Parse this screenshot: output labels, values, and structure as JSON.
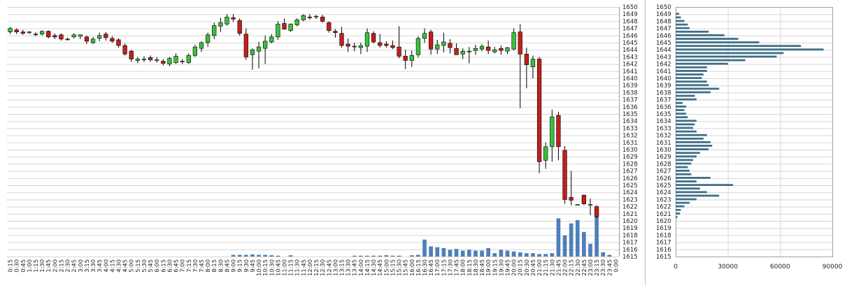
{
  "colors": {
    "bull": "#3cc03c",
    "bear": "#c41e1e",
    "wick": "#000000",
    "volume": "#4f7fb8",
    "profile": "#3f6f86",
    "grid": "#d6d6d6",
    "separator": "#bfbfbf"
  },
  "chart_data": [
    {
      "type": "candlestick",
      "x_tick_labels": [
        "0:15",
        "0:30",
        "0:45",
        "1:00",
        "1:15",
        "1:30",
        "1:45",
        "2:00",
        "2:15",
        "2:30",
        "2:45",
        "3:00",
        "3:15",
        "3:30",
        "3:45",
        "4:00",
        "4:15",
        "4:30",
        "4:45",
        "5:00",
        "5:15",
        "5:30",
        "5:45",
        "6:00",
        "6:15",
        "6:30",
        "6:45",
        "7:00",
        "7:15",
        "7:30",
        "7:45",
        "8:00",
        "8:15",
        "8:30",
        "8:45",
        "9:00",
        "9:15",
        "9:30",
        "9:45",
        "10:00",
        "10:15",
        "10:30",
        "10:45",
        "11:00",
        "11:15",
        "11:30",
        "11:45",
        "12:00",
        "12:15",
        "12:30",
        "12:45",
        "13:00",
        "13:15",
        "13:30",
        "13:45",
        "14:00",
        "14:15",
        "14:30",
        "14:45",
        "15:00",
        "15:15",
        "15:30",
        "15:45",
        "16:00",
        "16:15",
        "16:30",
        "16:45",
        "17:00",
        "17:15",
        "17:30",
        "17:45",
        "18:00",
        "18:15",
        "18:30",
        "18:45",
        "19:00",
        "19:15",
        "19:30",
        "19:45",
        "20:00",
        "20:15",
        "20:30",
        "20:45",
        "21:00",
        "21:15",
        "21:30",
        "21:45",
        "22:00",
        "22:15",
        "22:30",
        "22:45",
        "23:00",
        "23:15",
        "23:30",
        "23:45",
        "0:00"
      ],
      "y_tick_labels": [
        "1615",
        "1616",
        "1617",
        "1618",
        "1619",
        "1620",
        "1621",
        "1622",
        "1623",
        "1624",
        "1625",
        "1626",
        "1627",
        "1628",
        "1629",
        "1630",
        "1631",
        "1632",
        "1633",
        "1634",
        "1635",
        "1636",
        "1637",
        "1638",
        "1639",
        "1640",
        "1641",
        "1642",
        "1643",
        "1644",
        "1645",
        "1646",
        "1647",
        "1648",
        "1649",
        "1650"
      ],
      "ylim": [
        1615,
        1650
      ],
      "candles": [
        {
          "o": 1646.5,
          "h": 1647.2,
          "l": 1646.2,
          "c": 1647.0
        },
        {
          "o": 1646.8,
          "h": 1647.0,
          "l": 1646.2,
          "c": 1646.5
        },
        {
          "o": 1646.5,
          "h": 1646.8,
          "l": 1646.1,
          "c": 1646.3
        },
        {
          "o": 1646.4,
          "h": 1646.6,
          "l": 1646.2,
          "c": 1646.5
        },
        {
          "o": 1646.2,
          "h": 1646.5,
          "l": 1645.9,
          "c": 1646.1
        },
        {
          "o": 1646.2,
          "h": 1646.7,
          "l": 1646.0,
          "c": 1646.6
        },
        {
          "o": 1646.6,
          "h": 1646.7,
          "l": 1645.6,
          "c": 1645.8
        },
        {
          "o": 1646.0,
          "h": 1646.3,
          "l": 1645.5,
          "c": 1645.8
        },
        {
          "o": 1646.1,
          "h": 1646.3,
          "l": 1645.3,
          "c": 1645.5
        },
        {
          "o": 1645.5,
          "h": 1645.7,
          "l": 1645.3,
          "c": 1645.4
        },
        {
          "o": 1645.8,
          "h": 1646.3,
          "l": 1645.6,
          "c": 1646.1
        },
        {
          "o": 1645.9,
          "h": 1646.1,
          "l": 1645.5,
          "c": 1646.1
        },
        {
          "o": 1645.8,
          "h": 1646.0,
          "l": 1644.8,
          "c": 1645.2
        },
        {
          "o": 1645.0,
          "h": 1645.8,
          "l": 1644.8,
          "c": 1645.5
        },
        {
          "o": 1645.6,
          "h": 1646.4,
          "l": 1645.2,
          "c": 1646.0
        },
        {
          "o": 1646.2,
          "h": 1646.5,
          "l": 1645.3,
          "c": 1645.7
        },
        {
          "o": 1645.6,
          "h": 1645.9,
          "l": 1645.0,
          "c": 1645.2
        },
        {
          "o": 1645.4,
          "h": 1645.6,
          "l": 1644.3,
          "c": 1644.6
        },
        {
          "o": 1644.6,
          "h": 1644.9,
          "l": 1643.2,
          "c": 1643.4
        },
        {
          "o": 1643.8,
          "h": 1644.0,
          "l": 1642.3,
          "c": 1642.7
        },
        {
          "o": 1642.5,
          "h": 1643.0,
          "l": 1642.1,
          "c": 1642.7
        },
        {
          "o": 1642.6,
          "h": 1643.1,
          "l": 1642.3,
          "c": 1642.7
        },
        {
          "o": 1642.9,
          "h": 1643.2,
          "l": 1642.3,
          "c": 1642.6
        },
        {
          "o": 1642.5,
          "h": 1643.0,
          "l": 1642.2,
          "c": 1642.6
        },
        {
          "o": 1642.4,
          "h": 1642.7,
          "l": 1641.8,
          "c": 1642.1
        },
        {
          "o": 1642.0,
          "h": 1643.0,
          "l": 1641.7,
          "c": 1642.8
        },
        {
          "o": 1642.2,
          "h": 1643.5,
          "l": 1642.0,
          "c": 1643.1
        },
        {
          "o": 1642.3,
          "h": 1642.7,
          "l": 1642.0,
          "c": 1642.4
        },
        {
          "o": 1642.2,
          "h": 1643.5,
          "l": 1642.0,
          "c": 1643.2
        },
        {
          "o": 1643.2,
          "h": 1644.7,
          "l": 1643.0,
          "c": 1644.4
        },
        {
          "o": 1644.2,
          "h": 1645.2,
          "l": 1643.7,
          "c": 1645.0
        },
        {
          "o": 1645.0,
          "h": 1646.4,
          "l": 1644.4,
          "c": 1646.1
        },
        {
          "o": 1646.0,
          "h": 1647.8,
          "l": 1645.5,
          "c": 1647.4
        },
        {
          "o": 1647.3,
          "h": 1648.5,
          "l": 1646.5,
          "c": 1647.8
        },
        {
          "o": 1647.6,
          "h": 1649.0,
          "l": 1647.4,
          "c": 1648.6
        },
        {
          "o": 1648.5,
          "h": 1649.0,
          "l": 1647.9,
          "c": 1648.3
        },
        {
          "o": 1648.1,
          "h": 1648.4,
          "l": 1646.0,
          "c": 1646.3
        },
        {
          "o": 1646.2,
          "h": 1647.0,
          "l": 1642.6,
          "c": 1643.0
        },
        {
          "o": 1643.3,
          "h": 1644.2,
          "l": 1641.2,
          "c": 1644.0
        },
        {
          "o": 1643.8,
          "h": 1645.1,
          "l": 1641.4,
          "c": 1644.4
        },
        {
          "o": 1644.2,
          "h": 1646.0,
          "l": 1642.0,
          "c": 1645.2
        },
        {
          "o": 1645.1,
          "h": 1646.2,
          "l": 1644.9,
          "c": 1645.8
        },
        {
          "o": 1645.8,
          "h": 1648.0,
          "l": 1645.4,
          "c": 1647.6
        },
        {
          "o": 1647.7,
          "h": 1648.4,
          "l": 1646.8,
          "c": 1646.9
        },
        {
          "o": 1646.7,
          "h": 1647.7,
          "l": 1646.5,
          "c": 1647.6
        },
        {
          "o": 1647.5,
          "h": 1648.4,
          "l": 1647.3,
          "c": 1648.2
        },
        {
          "o": 1648.2,
          "h": 1649.0,
          "l": 1648.0,
          "c": 1648.8
        },
        {
          "o": 1648.6,
          "h": 1649.0,
          "l": 1648.2,
          "c": 1648.5
        },
        {
          "o": 1648.6,
          "h": 1648.9,
          "l": 1648.3,
          "c": 1648.7
        },
        {
          "o": 1648.6,
          "h": 1648.9,
          "l": 1647.8,
          "c": 1648.0
        },
        {
          "o": 1647.8,
          "h": 1648.0,
          "l": 1646.4,
          "c": 1646.7
        },
        {
          "o": 1646.6,
          "h": 1646.9,
          "l": 1645.7,
          "c": 1646.4
        },
        {
          "o": 1646.3,
          "h": 1647.2,
          "l": 1644.3,
          "c": 1644.6
        },
        {
          "o": 1644.8,
          "h": 1645.6,
          "l": 1643.7,
          "c": 1644.5
        },
        {
          "o": 1644.5,
          "h": 1645.0,
          "l": 1643.8,
          "c": 1644.4
        },
        {
          "o": 1644.3,
          "h": 1645.0,
          "l": 1643.4,
          "c": 1644.6
        },
        {
          "o": 1644.5,
          "h": 1647.0,
          "l": 1643.7,
          "c": 1646.4
        },
        {
          "o": 1646.3,
          "h": 1646.6,
          "l": 1644.9,
          "c": 1645.1
        },
        {
          "o": 1645.0,
          "h": 1646.2,
          "l": 1644.3,
          "c": 1644.6
        },
        {
          "o": 1644.8,
          "h": 1645.2,
          "l": 1644.3,
          "c": 1644.6
        },
        {
          "o": 1644.6,
          "h": 1645.3,
          "l": 1644.1,
          "c": 1644.3
        },
        {
          "o": 1644.4,
          "h": 1647.3,
          "l": 1642.8,
          "c": 1643.1
        },
        {
          "o": 1643.1,
          "h": 1644.0,
          "l": 1641.3,
          "c": 1642.5
        },
        {
          "o": 1642.5,
          "h": 1643.9,
          "l": 1641.6,
          "c": 1643.2
        },
        {
          "o": 1643.3,
          "h": 1645.9,
          "l": 1642.9,
          "c": 1645.6
        },
        {
          "o": 1645.6,
          "h": 1647.0,
          "l": 1645.0,
          "c": 1646.3
        },
        {
          "o": 1646.5,
          "h": 1646.8,
          "l": 1643.3,
          "c": 1644.1
        },
        {
          "o": 1644.1,
          "h": 1645.4,
          "l": 1643.4,
          "c": 1644.7
        },
        {
          "o": 1644.6,
          "h": 1646.4,
          "l": 1643.6,
          "c": 1645.1
        },
        {
          "o": 1644.9,
          "h": 1645.5,
          "l": 1643.5,
          "c": 1644.3
        },
        {
          "o": 1644.2,
          "h": 1644.9,
          "l": 1643.3,
          "c": 1643.3
        },
        {
          "o": 1643.4,
          "h": 1644.2,
          "l": 1642.7,
          "c": 1643.8
        },
        {
          "o": 1643.7,
          "h": 1644.4,
          "l": 1642.1,
          "c": 1643.8
        },
        {
          "o": 1643.9,
          "h": 1644.7,
          "l": 1643.3,
          "c": 1644.2
        },
        {
          "o": 1644.1,
          "h": 1644.8,
          "l": 1643.8,
          "c": 1644.5
        },
        {
          "o": 1644.4,
          "h": 1645.3,
          "l": 1643.4,
          "c": 1643.9
        },
        {
          "o": 1643.7,
          "h": 1644.4,
          "l": 1643.5,
          "c": 1644.0
        },
        {
          "o": 1644.2,
          "h": 1644.6,
          "l": 1643.3,
          "c": 1643.9
        },
        {
          "o": 1643.8,
          "h": 1644.4,
          "l": 1643.4,
          "c": 1644.3
        },
        {
          "o": 1644.1,
          "h": 1647.0,
          "l": 1643.9,
          "c": 1646.4
        },
        {
          "o": 1646.5,
          "h": 1647.6,
          "l": 1635.8,
          "c": 1643.4
        },
        {
          "o": 1643.4,
          "h": 1644.3,
          "l": 1638.6,
          "c": 1641.9
        },
        {
          "o": 1641.6,
          "h": 1643.2,
          "l": 1640.0,
          "c": 1642.7
        },
        {
          "o": 1642.7,
          "h": 1643.0,
          "l": 1626.7,
          "c": 1628.3
        },
        {
          "o": 1628.5,
          "h": 1631.0,
          "l": 1627.3,
          "c": 1630.4
        },
        {
          "o": 1630.4,
          "h": 1635.6,
          "l": 1628.3,
          "c": 1634.6
        },
        {
          "o": 1634.8,
          "h": 1635.3,
          "l": 1628.5,
          "c": 1630.4
        },
        {
          "o": 1629.9,
          "h": 1630.5,
          "l": 1622.4,
          "c": 1623.0
        },
        {
          "o": 1623.3,
          "h": 1627.0,
          "l": 1622.2,
          "c": 1622.9
        },
        {
          "o": 1622.3,
          "h": 1622.3,
          "l": 1622.3,
          "c": 1622.3
        },
        {
          "o": 1623.6,
          "h": 1623.7,
          "l": 1622.2,
          "c": 1622.4
        },
        {
          "o": 1622.3,
          "h": 1623.1,
          "l": 1620.8,
          "c": 1622.3
        },
        {
          "o": 1622.0,
          "h": 1622.2,
          "l": 1620.4,
          "c": 1620.6
        }
      ],
      "volume": [
        0,
        0,
        0,
        0,
        0,
        0,
        0,
        0,
        0,
        0,
        0,
        0,
        0,
        0,
        0,
        0,
        0,
        0,
        0,
        0,
        0,
        0,
        0,
        0,
        0,
        0,
        0,
        0,
        0,
        0,
        0,
        0,
        0,
        0,
        0,
        0.02,
        0.02,
        0.02,
        0.025,
        0.02,
        0.02,
        0.015,
        0.01,
        0,
        0.015,
        0,
        0,
        0,
        0,
        0,
        0,
        0,
        0,
        0,
        0.01,
        0.01,
        0.01,
        0.01,
        0.01,
        0.015,
        0.01,
        0.01,
        0,
        0.015,
        0.02,
        0.2,
        0.12,
        0.11,
        0.1,
        0.08,
        0.09,
        0.07,
        0.08,
        0.07,
        0.07,
        0.1,
        0.04,
        0.08,
        0.07,
        0.06,
        0.05,
        0.04,
        0.04,
        0.03,
        0.03,
        0.04,
        0.45,
        0.25,
        0.39,
        0.43,
        0.29,
        0.15,
        0.48,
        0.05,
        0.02,
        0,
        0,
        0
      ]
    },
    {
      "type": "bar",
      "orientation": "horizontal",
      "x_tick_labels": [
        "0",
        "30000",
        "60000",
        "90000"
      ],
      "xlim": [
        0,
        90000
      ],
      "y_tick_labels": [
        "1615",
        "1616",
        "1617",
        "1618",
        "1619",
        "1620",
        "1621",
        "1622",
        "1623",
        "1624",
        "1625",
        "1626",
        "1627",
        "1628",
        "1629",
        "1630",
        "1631",
        "1632",
        "1633",
        "1634",
        "1635",
        "1636",
        "1637",
        "1638",
        "1639",
        "1640",
        "1641",
        "1642",
        "1643",
        "1644",
        "1645",
        "1646",
        "1647",
        "1648",
        "1649",
        "1650"
      ],
      "ylim": [
        1615,
        1650
      ],
      "price_levels": [
        1620.5,
        1621,
        1621.5,
        1622,
        1622.5,
        1623,
        1623.5,
        1624,
        1624.5,
        1625,
        1625.5,
        1626,
        1626.5,
        1627,
        1627.5,
        1628,
        1628.5,
        1629,
        1629.5,
        1630,
        1630.5,
        1631,
        1631.5,
        1632,
        1632.5,
        1633,
        1633.5,
        1634,
        1634.5,
        1635,
        1635.5,
        1636,
        1636.5,
        1637,
        1637.5,
        1638,
        1638.5,
        1639,
        1639.5,
        1640,
        1640.5,
        1641,
        1641.5,
        1642,
        1642.5,
        1643,
        1643.5,
        1644,
        1644.5,
        1645,
        1645.5,
        1646,
        1646.5,
        1647,
        1647.5,
        1648,
        1648.5,
        1649
      ],
      "values": [
        1000,
        2500,
        3000,
        5000,
        8000,
        12000,
        25000,
        18000,
        14000,
        33000,
        12000,
        20000,
        9000,
        8000,
        7000,
        9000,
        10000,
        12000,
        14000,
        19000,
        21000,
        20000,
        16000,
        18000,
        12000,
        10000,
        11000,
        12000,
        7000,
        6000,
        5000,
        6000,
        4000,
        12000,
        11000,
        20000,
        25000,
        19000,
        18000,
        15000,
        16000,
        18000,
        18000,
        30000,
        40000,
        58000,
        62000,
        85000,
        72000,
        48000,
        36000,
        28000,
        19000,
        8000,
        7000,
        5000,
        3000,
        2000
      ]
    }
  ]
}
